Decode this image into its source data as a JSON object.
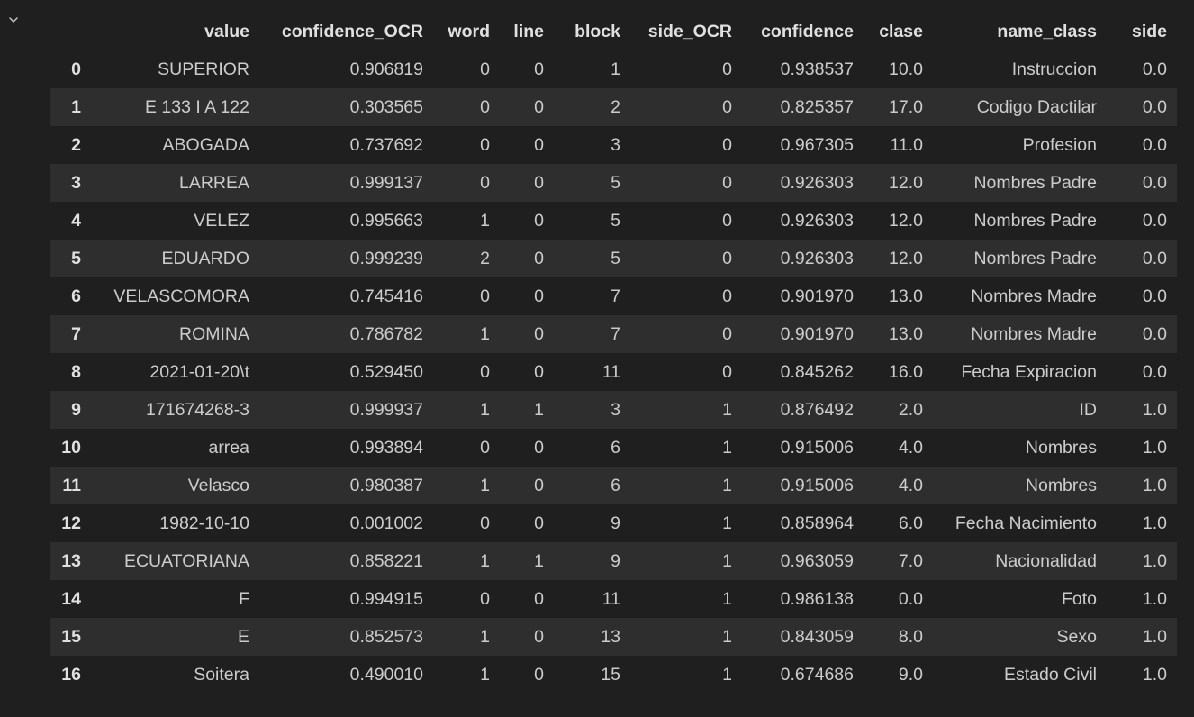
{
  "output": {
    "collapse_icon": "chevron-down-icon",
    "columns": [
      "",
      "value",
      "confidence_OCR",
      "word",
      "line",
      "block",
      "side_OCR",
      "confidence",
      "clase",
      "name_class",
      "side"
    ],
    "rows": [
      {
        "index": "0",
        "value": "SUPERIOR",
        "confidence_OCR": "0.906819",
        "word": "0",
        "line": "0",
        "block": "1",
        "side_OCR": "0",
        "confidence": "0.938537",
        "clase": "10.0",
        "name_class": "Instruccion",
        "side": "0.0"
      },
      {
        "index": "1",
        "value": "E 133 I A 122",
        "confidence_OCR": "0.303565",
        "word": "0",
        "line": "0",
        "block": "2",
        "side_OCR": "0",
        "confidence": "0.825357",
        "clase": "17.0",
        "name_class": "Codigo Dactilar",
        "side": "0.0"
      },
      {
        "index": "2",
        "value": "ABOGADA",
        "confidence_OCR": "0.737692",
        "word": "0",
        "line": "0",
        "block": "3",
        "side_OCR": "0",
        "confidence": "0.967305",
        "clase": "11.0",
        "name_class": "Profesion",
        "side": "0.0"
      },
      {
        "index": "3",
        "value": "LARREA",
        "confidence_OCR": "0.999137",
        "word": "0",
        "line": "0",
        "block": "5",
        "side_OCR": "0",
        "confidence": "0.926303",
        "clase": "12.0",
        "name_class": "Nombres Padre",
        "side": "0.0"
      },
      {
        "index": "4",
        "value": "VELEZ",
        "confidence_OCR": "0.995663",
        "word": "1",
        "line": "0",
        "block": "5",
        "side_OCR": "0",
        "confidence": "0.926303",
        "clase": "12.0",
        "name_class": "Nombres Padre",
        "side": "0.0"
      },
      {
        "index": "5",
        "value": "EDUARDO",
        "confidence_OCR": "0.999239",
        "word": "2",
        "line": "0",
        "block": "5",
        "side_OCR": "0",
        "confidence": "0.926303",
        "clase": "12.0",
        "name_class": "Nombres Padre",
        "side": "0.0"
      },
      {
        "index": "6",
        "value": "VELASCOMORA",
        "confidence_OCR": "0.745416",
        "word": "0",
        "line": "0",
        "block": "7",
        "side_OCR": "0",
        "confidence": "0.901970",
        "clase": "13.0",
        "name_class": "Nombres Madre",
        "side": "0.0"
      },
      {
        "index": "7",
        "value": "ROMINA",
        "confidence_OCR": "0.786782",
        "word": "1",
        "line": "0",
        "block": "7",
        "side_OCR": "0",
        "confidence": "0.901970",
        "clase": "13.0",
        "name_class": "Nombres Madre",
        "side": "0.0"
      },
      {
        "index": "8",
        "value": "2021-01-20\\t",
        "confidence_OCR": "0.529450",
        "word": "0",
        "line": "0",
        "block": "11",
        "side_OCR": "0",
        "confidence": "0.845262",
        "clase": "16.0",
        "name_class": "Fecha Expiracion",
        "side": "0.0"
      },
      {
        "index": "9",
        "value": "171674268-3",
        "confidence_OCR": "0.999937",
        "word": "1",
        "line": "1",
        "block": "3",
        "side_OCR": "1",
        "confidence": "0.876492",
        "clase": "2.0",
        "name_class": "ID",
        "side": "1.0"
      },
      {
        "index": "10",
        "value": "arrea",
        "confidence_OCR": "0.993894",
        "word": "0",
        "line": "0",
        "block": "6",
        "side_OCR": "1",
        "confidence": "0.915006",
        "clase": "4.0",
        "name_class": "Nombres",
        "side": "1.0"
      },
      {
        "index": "11",
        "value": "Velasco",
        "confidence_OCR": "0.980387",
        "word": "1",
        "line": "0",
        "block": "6",
        "side_OCR": "1",
        "confidence": "0.915006",
        "clase": "4.0",
        "name_class": "Nombres",
        "side": "1.0"
      },
      {
        "index": "12",
        "value": "1982-10-10",
        "confidence_OCR": "0.001002",
        "word": "0",
        "line": "0",
        "block": "9",
        "side_OCR": "1",
        "confidence": "0.858964",
        "clase": "6.0",
        "name_class": "Fecha Nacimiento",
        "side": "1.0"
      },
      {
        "index": "13",
        "value": "ECUATORIANA",
        "confidence_OCR": "0.858221",
        "word": "1",
        "line": "1",
        "block": "9",
        "side_OCR": "1",
        "confidence": "0.963059",
        "clase": "7.0",
        "name_class": "Nacionalidad",
        "side": "1.0"
      },
      {
        "index": "14",
        "value": "F",
        "confidence_OCR": "0.994915",
        "word": "0",
        "line": "0",
        "block": "11",
        "side_OCR": "1",
        "confidence": "0.986138",
        "clase": "0.0",
        "name_class": "Foto",
        "side": "1.0"
      },
      {
        "index": "15",
        "value": "E",
        "confidence_OCR": "0.852573",
        "word": "1",
        "line": "0",
        "block": "13",
        "side_OCR": "1",
        "confidence": "0.843059",
        "clase": "8.0",
        "name_class": "Sexo",
        "side": "1.0"
      },
      {
        "index": "16",
        "value": "Soitera",
        "confidence_OCR": "0.490010",
        "word": "1",
        "line": "0",
        "block": "15",
        "side_OCR": "1",
        "confidence": "0.674686",
        "clase": "9.0",
        "name_class": "Estado Civil",
        "side": "1.0"
      }
    ]
  },
  "colors": {
    "background": "#1f1f1f",
    "stripe": "#2e2e2e",
    "text": "#cccccc",
    "header_text": "#e0e0e0"
  }
}
